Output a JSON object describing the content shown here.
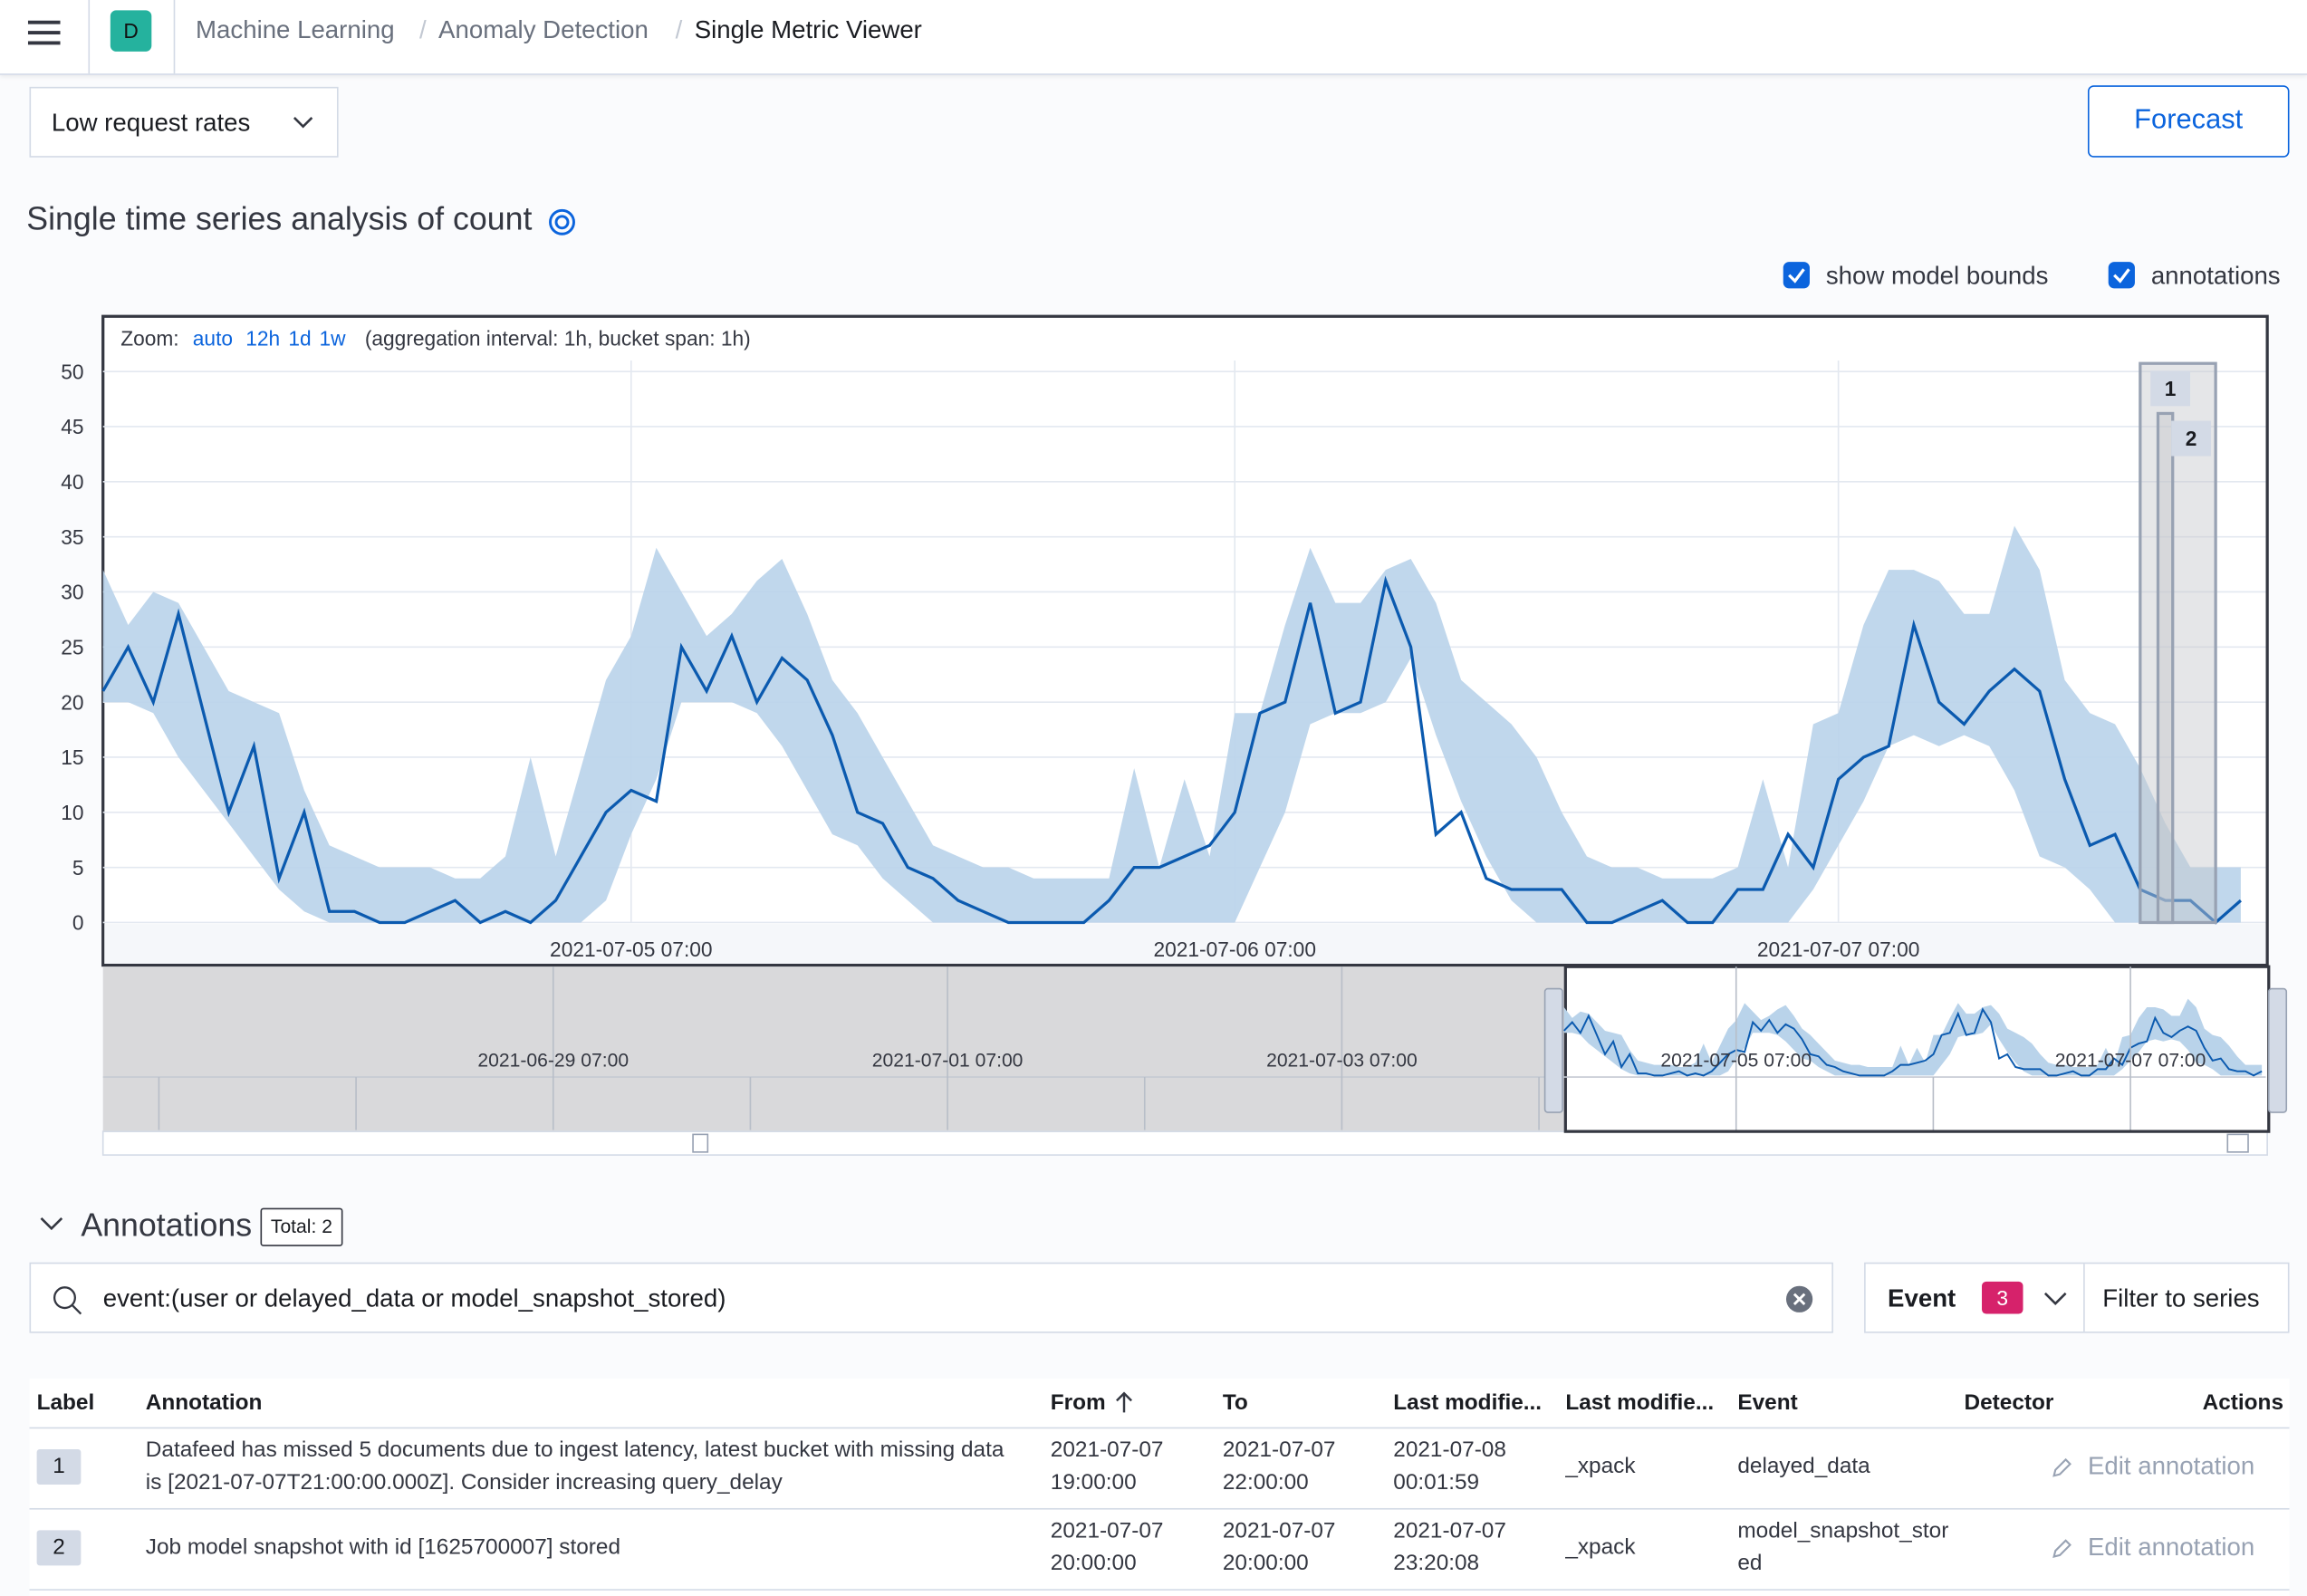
{
  "header": {
    "space_badge": "D",
    "breadcrumbs": [
      "Machine Learning",
      "Anomaly Detection",
      "Single Metric Viewer"
    ]
  },
  "controls": {
    "job_select": "Low request rates",
    "forecast_button": "Forecast",
    "title": "Single time series analysis of count",
    "toggles": [
      "show model bounds",
      "annotations"
    ]
  },
  "chart_data": {
    "type": "line",
    "zoom": {
      "label": "Zoom:",
      "options": [
        "auto",
        "12h",
        "1d",
        "1w"
      ],
      "info": "(aggregation interval: 1h, bucket span: 1h)"
    },
    "x": [
      "2021-07-04 10:00",
      "2021-07-04 11:00",
      "2021-07-04 12:00",
      "2021-07-04 13:00",
      "2021-07-04 14:00",
      "2021-07-04 15:00",
      "2021-07-04 16:00",
      "2021-07-04 17:00",
      "2021-07-04 18:00",
      "2021-07-04 19:00",
      "2021-07-04 20:00",
      "2021-07-04 21:00",
      "2021-07-04 22:00",
      "2021-07-04 23:00",
      "2021-07-05 00:00",
      "2021-07-05 01:00",
      "2021-07-05 02:00",
      "2021-07-05 03:00",
      "2021-07-05 04:00",
      "2021-07-05 05:00",
      "2021-07-05 06:00",
      "2021-07-05 07:00",
      "2021-07-05 08:00",
      "2021-07-05 09:00",
      "2021-07-05 10:00",
      "2021-07-05 11:00",
      "2021-07-05 12:00",
      "2021-07-05 13:00",
      "2021-07-05 14:00",
      "2021-07-05 15:00",
      "2021-07-05 16:00",
      "2021-07-05 17:00",
      "2021-07-05 18:00",
      "2021-07-05 19:00",
      "2021-07-05 20:00",
      "2021-07-05 21:00",
      "2021-07-05 22:00",
      "2021-07-05 23:00",
      "2021-07-06 00:00",
      "2021-07-06 01:00",
      "2021-07-06 02:00",
      "2021-07-06 03:00",
      "2021-07-06 04:00",
      "2021-07-06 05:00",
      "2021-07-06 06:00",
      "2021-07-06 07:00",
      "2021-07-06 08:00",
      "2021-07-06 09:00",
      "2021-07-06 10:00",
      "2021-07-06 11:00",
      "2021-07-06 12:00",
      "2021-07-06 13:00",
      "2021-07-06 14:00",
      "2021-07-06 15:00",
      "2021-07-06 16:00",
      "2021-07-06 17:00",
      "2021-07-06 18:00",
      "2021-07-06 19:00",
      "2021-07-06 20:00",
      "2021-07-06 21:00",
      "2021-07-06 22:00",
      "2021-07-06 23:00",
      "2021-07-07 00:00",
      "2021-07-07 01:00",
      "2021-07-07 02:00",
      "2021-07-07 03:00",
      "2021-07-07 04:00",
      "2021-07-07 05:00",
      "2021-07-07 06:00",
      "2021-07-07 07:00",
      "2021-07-07 08:00",
      "2021-07-07 09:00",
      "2021-07-07 10:00",
      "2021-07-07 11:00",
      "2021-07-07 12:00",
      "2021-07-07 13:00",
      "2021-07-07 14:00",
      "2021-07-07 15:00",
      "2021-07-07 16:00",
      "2021-07-07 17:00",
      "2021-07-07 18:00",
      "2021-07-07 19:00",
      "2021-07-07 20:00",
      "2021-07-07 21:00",
      "2021-07-07 22:00",
      "2021-07-07 23:00"
    ],
    "series": [
      {
        "color": "#0b5aaf",
        "values": [
          21,
          25,
          20,
          28,
          19,
          10,
          16,
          4,
          10,
          1,
          1,
          0,
          0,
          1,
          2,
          0,
          1,
          0,
          2,
          6,
          10,
          12,
          11,
          25,
          21,
          26,
          20,
          24,
          22,
          17,
          10,
          9,
          5,
          4,
          2,
          1,
          0,
          0,
          0,
          0,
          2,
          5,
          5,
          6,
          7,
          10,
          19,
          20,
          29,
          19,
          20,
          31,
          25,
          8,
          10,
          4,
          3,
          3,
          3,
          0,
          0,
          1,
          2,
          0,
          0,
          3,
          3,
          8,
          5,
          13,
          15,
          16,
          27,
          20,
          18,
          21,
          23,
          21,
          13,
          7,
          8,
          3,
          2,
          2,
          0,
          2
        ]
      }
    ],
    "bounds": {
      "color": "#b9d3ea",
      "upper": [
        32,
        27,
        30,
        29,
        25,
        21,
        20,
        19,
        12,
        7,
        6,
        5,
        5,
        5,
        4,
        4,
        6,
        15,
        6,
        14,
        22,
        26,
        34,
        30,
        26,
        28,
        31,
        33,
        28,
        22,
        19,
        15,
        11,
        7,
        6,
        5,
        5,
        4,
        4,
        4,
        4,
        14,
        5,
        13,
        6,
        19,
        19,
        27,
        34,
        29,
        29,
        32,
        33,
        29,
        22,
        20,
        18,
        15,
        10,
        6,
        5,
        5,
        4,
        4,
        4,
        5,
        13,
        5,
        18,
        19,
        27,
        32,
        32,
        31,
        28,
        28,
        36,
        32,
        22,
        19,
        18,
        14,
        9,
        5,
        5,
        5
      ],
      "lower": [
        20,
        20,
        19,
        15,
        12,
        9,
        6,
        3,
        1,
        0,
        0,
        0,
        0,
        0,
        0,
        0,
        0,
        0,
        0,
        0,
        2,
        8,
        13,
        20,
        20,
        20,
        19,
        16,
        12,
        8,
        7,
        4,
        2,
        0,
        0,
        0,
        0,
        0,
        0,
        0,
        0,
        0,
        0,
        0,
        0,
        0,
        5,
        10,
        18,
        19,
        19,
        20,
        24,
        17,
        11,
        6,
        2,
        0,
        0,
        0,
        0,
        0,
        0,
        0,
        0,
        0,
        0,
        0,
        3,
        7,
        11,
        16,
        17,
        16,
        17,
        16,
        12,
        6,
        5,
        3,
        0,
        0,
        0,
        0,
        0,
        0
      ]
    },
    "ylim": [
      0,
      51
    ],
    "yticks": [
      0,
      5,
      10,
      15,
      20,
      25,
      30,
      35,
      40,
      45,
      50
    ],
    "grid": true,
    "xticks": [
      "2021-07-05 07:00",
      "2021-07-06 07:00",
      "2021-07-07 07:00"
    ],
    "annotations": [
      {
        "label": "1",
        "from": "2021-07-07 19:00",
        "to": "2021-07-07 22:00"
      },
      {
        "label": "2",
        "from": "2021-07-07 20:00",
        "to": "2021-07-07 20:00"
      }
    ],
    "overview_xticks": [
      "2021-06-29 07:00",
      "2021-07-01 07:00",
      "2021-07-03 07:00",
      "2021-07-05 07:00",
      "2021-07-07 07:00"
    ]
  },
  "annotations_panel": {
    "title": "Annotations",
    "total": "Total: 2",
    "search": "event:(user or delayed_data or model_snapshot_stored)",
    "event_filter": "Event",
    "event_count": "3",
    "filter_button": "Filter to series",
    "columns": [
      "Label",
      "Annotation",
      "From",
      "To",
      "Last modifie...",
      "Last modifie...",
      "Event",
      "Detector",
      "Actions"
    ],
    "rows": [
      {
        "label": "1",
        "annotation": "Datafeed has missed 5 documents due to ingest latency, latest bucket with missing data is [2021-07-07T21:00:00.000Z]. Consider increasing query_delay",
        "from": "2021-07-07 19:00:00",
        "to": "2021-07-07 22:00:00",
        "modified": "2021-07-08 00:01:59",
        "modified_by": "_xpack",
        "event": "delayed_data",
        "action": "Edit annotation"
      },
      {
        "label": "2",
        "annotation": "Job model snapshot with id [1625700007] stored",
        "from": "2021-07-07 20:00:00",
        "to": "2021-07-07 20:00:00",
        "modified": "2021-07-07 23:20:08",
        "modified_by": "_xpack",
        "event": "model_snapshot_stored",
        "action": "Edit annotation"
      }
    ]
  }
}
